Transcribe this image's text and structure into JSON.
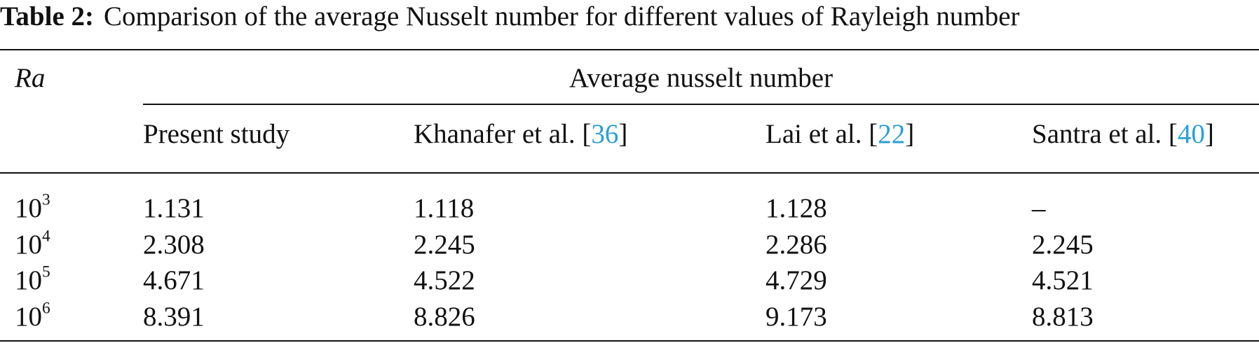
{
  "caption": {
    "label": "Table 2:",
    "text": "Comparison of the average Nusselt number for different values of Rayleigh number"
  },
  "table": {
    "row_header": "Ra",
    "group_header": "Average nusselt number",
    "columns": [
      {
        "before": "Present study"
      },
      {
        "before": "Khanafer et al. [",
        "ref": "36",
        "after": "]"
      },
      {
        "before": "Lai et al. [",
        "ref": "22",
        "after": "]"
      },
      {
        "before": "Santra et al. [",
        "ref": "40",
        "after": "]"
      }
    ],
    "rows": [
      {
        "ra": {
          "base": "10",
          "exp": "3"
        },
        "values": [
          "1.131",
          "1.118",
          "1.128",
          "–"
        ]
      },
      {
        "ra": {
          "base": "10",
          "exp": "4"
        },
        "values": [
          "2.308",
          "2.245",
          "2.286",
          "2.245"
        ]
      },
      {
        "ra": {
          "base": "10",
          "exp": "5"
        },
        "values": [
          "4.671",
          "4.522",
          "4.729",
          "4.521"
        ]
      },
      {
        "ra": {
          "base": "10",
          "exp": "6"
        },
        "values": [
          "8.391",
          "8.826",
          "9.173",
          "8.813"
        ]
      }
    ]
  }
}
